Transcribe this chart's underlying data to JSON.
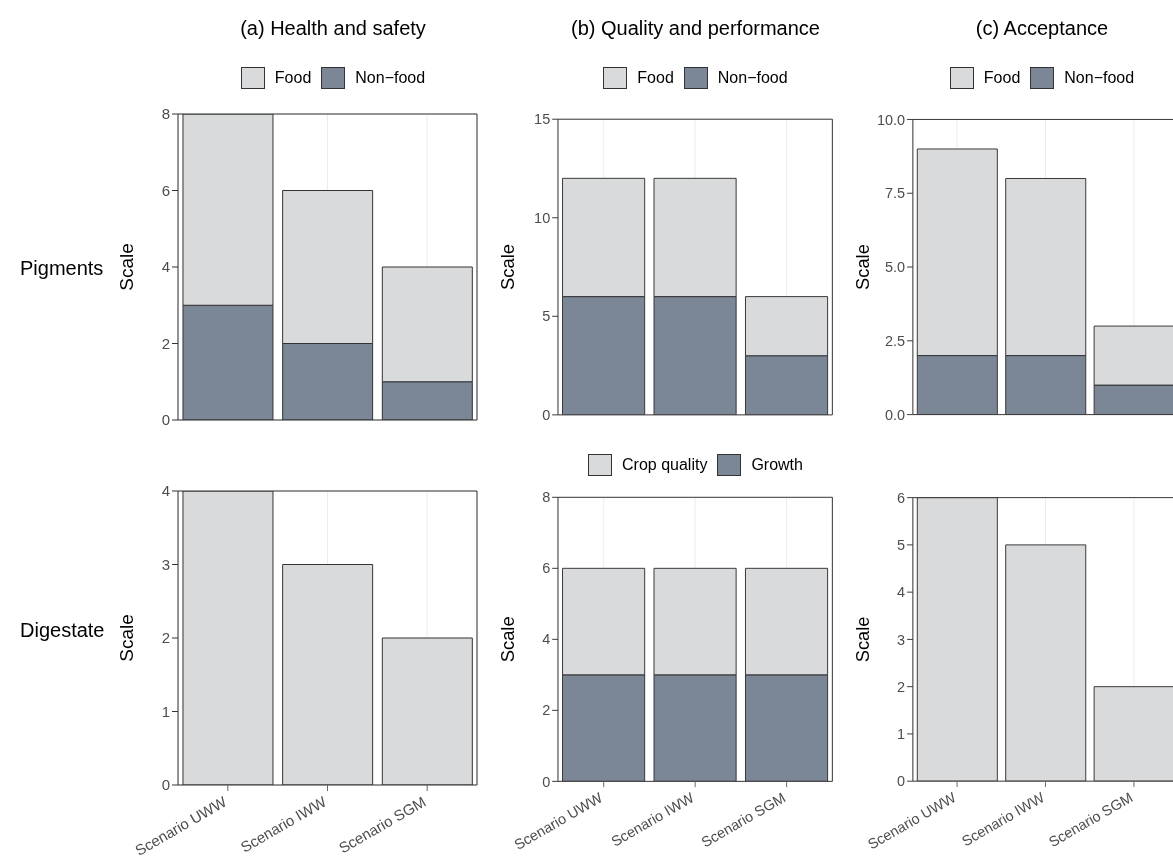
{
  "chart_data": [
    {
      "type": "bar",
      "title": "(a) Health and safety",
      "annotations": [
        "Pigments"
      ],
      "ylabel": "Scale",
      "categories": [
        null,
        null,
        null
      ],
      "stacked": true,
      "legend": "top",
      "grid": true,
      "tick_labels": "y",
      "ylim": [
        0,
        8
      ],
      "yticks": [
        0,
        2,
        4,
        6,
        8
      ],
      "series": [
        {
          "name": "Non−food",
          "color": "#7b8797",
          "values": [
            3,
            2,
            1
          ]
        },
        {
          "name": "Food",
          "color": "#d9dadc",
          "values": [
            5,
            4,
            3
          ]
        }
      ]
    },
    {
      "type": "bar",
      "title": "(b) Quality and performance",
      "ylabel": "Scale",
      "categories": [
        null,
        null,
        null
      ],
      "stacked": true,
      "legend": "top",
      "grid": true,
      "tick_labels": "y",
      "ylim": [
        0,
        15
      ],
      "yticks": [
        0,
        5,
        10,
        15
      ],
      "series": [
        {
          "name": "Non−food",
          "color": "#7b8797",
          "values": [
            6,
            6,
            3
          ]
        },
        {
          "name": "Food",
          "color": "#d9dadc",
          "values": [
            6,
            6,
            3
          ]
        }
      ]
    },
    {
      "type": "bar",
      "title": "(c) Acceptance",
      "ylabel": "Scale",
      "categories": [
        null,
        null,
        null
      ],
      "stacked": true,
      "legend": "top",
      "grid": true,
      "tick_labels": "y",
      "ylim": [
        0,
        10
      ],
      "yticks": [
        {
          "value": 0,
          "label": "0.0"
        },
        {
          "value": 2.5,
          "label": "2.5"
        },
        {
          "value": 5,
          "label": "5.0"
        },
        {
          "value": 7.5,
          "label": "7.5"
        },
        {
          "value": 10,
          "label": "10.0"
        }
      ],
      "series": [
        {
          "name": "Non−food",
          "color": "#7b8797",
          "values": [
            2,
            2,
            1
          ]
        },
        {
          "name": "Food",
          "color": "#d9dadc",
          "values": [
            7,
            6,
            2
          ]
        }
      ]
    },
    {
      "type": "bar",
      "annotations": [
        "Digestate"
      ],
      "ylabel": "Scale",
      "categories": [
        "Scenario UWW",
        "Scenario IWW",
        "Scenario SGM"
      ],
      "grid": true,
      "ylim": [
        0,
        4
      ],
      "yticks": [
        0,
        1,
        2,
        3,
        4
      ],
      "series": [
        {
          "color": "#d9dadc",
          "values": [
            4,
            3,
            2
          ]
        }
      ]
    },
    {
      "type": "bar",
      "ylabel": "Scale",
      "categories": [
        "Scenario UWW",
        "Scenario IWW",
        "Scenario SGM"
      ],
      "stacked": true,
      "legend": "top",
      "grid": true,
      "ylim": [
        0,
        8
      ],
      "yticks": [
        0,
        2,
        4,
        6,
        8
      ],
      "series": [
        {
          "name": "Growth",
          "color": "#7b8797",
          "values": [
            3,
            3,
            3
          ]
        },
        {
          "name": "Crop quality",
          "color": "#d9dadc",
          "values": [
            3,
            3,
            3
          ]
        }
      ]
    },
    {
      "type": "bar",
      "ylabel": "Scale",
      "categories": [
        "Scenario UWW",
        "Scenario IWW",
        "Scenario SGM"
      ],
      "grid": true,
      "ylim": [
        0,
        6
      ],
      "yticks": [
        0,
        1,
        2,
        3,
        4,
        5,
        6
      ],
      "series": [
        {
          "color": "#d9dadc",
          "values": [
            6,
            5,
            2
          ]
        }
      ]
    }
  ]
}
